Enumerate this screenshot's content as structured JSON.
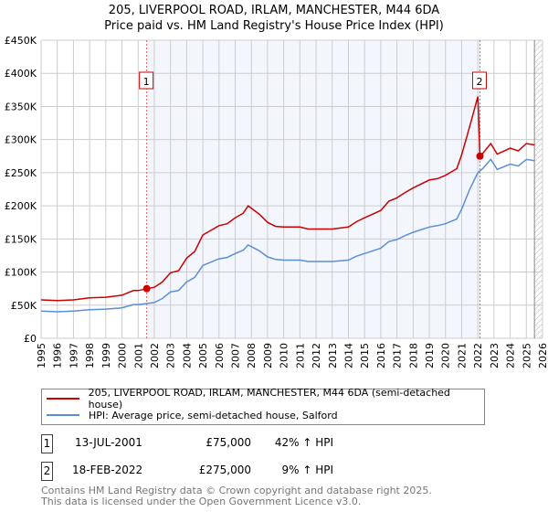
{
  "chart_data": {
    "type": "line",
    "title": "205, LIVERPOOL ROAD, IRLAM, MANCHESTER, M44 6DA",
    "subtitle": "Price paid vs. HM Land Registry's House Price Index (HPI)",
    "xlim": [
      1995,
      2026
    ],
    "ylim": [
      0,
      450000
    ],
    "x_ticks": [
      "1995",
      "1996",
      "1997",
      "1998",
      "1999",
      "2000",
      "2001",
      "2002",
      "2003",
      "2004",
      "2005",
      "2006",
      "2007",
      "2008",
      "2009",
      "2010",
      "2011",
      "2012",
      "2013",
      "2014",
      "2015",
      "2016",
      "2017",
      "2018",
      "2019",
      "2020",
      "2021",
      "2022",
      "2023",
      "2024",
      "2025",
      "2026"
    ],
    "y_ticks": [
      {
        "v": 0,
        "label": "£0"
      },
      {
        "v": 50000,
        "label": "£50K"
      },
      {
        "v": 100000,
        "label": "£100K"
      },
      {
        "v": 150000,
        "label": "£150K"
      },
      {
        "v": 200000,
        "label": "£200K"
      },
      {
        "v": 250000,
        "label": "£250K"
      },
      {
        "v": 300000,
        "label": "£300K"
      },
      {
        "v": 350000,
        "label": "£350K"
      },
      {
        "v": 400000,
        "label": "£400K"
      },
      {
        "v": 450000,
        "label": "£450K"
      }
    ],
    "grid": true,
    "series": [
      {
        "name": "205, LIVERPOOL ROAD, IRLAM, MANCHESTER, M44 6DA (semi-detached house)",
        "color": "#cc0000",
        "x": [
          1995,
          1996,
          1997,
          1998,
          1999,
          2000,
          2000.7,
          2001,
          2002,
          2002.5,
          2003,
          2003.5,
          2004,
          2004.5,
          2005,
          2005.5,
          2006,
          2006.5,
          2007,
          2007.5,
          2007.8,
          2008.5,
          2009,
          2009.5,
          2010,
          2011,
          2011.5,
          2012,
          2013,
          2014,
          2014.5,
          2015,
          2016,
          2016.5,
          2017,
          2017.5,
          2018,
          2019,
          2019.5,
          2020,
          2020.7,
          2021,
          2021.5,
          2022.0,
          2022.13,
          2022.3,
          2022.8,
          2023.2,
          2024,
          2024.5,
          2025,
          2025.5
        ],
        "y": [
          58000,
          57000,
          58000,
          61000,
          62000,
          65000,
          72000,
          72000,
          77000,
          85000,
          99000,
          102000,
          121000,
          131000,
          156000,
          163000,
          170000,
          173000,
          182000,
          189000,
          200000,
          187000,
          175000,
          169000,
          168000,
          168000,
          165000,
          165000,
          165000,
          168000,
          176000,
          182000,
          193000,
          207000,
          212000,
          220000,
          227000,
          239000,
          241000,
          246000,
          256000,
          277000,
          320000,
          365000,
          275000,
          279000,
          294000,
          278000,
          287000,
          283000,
          294000,
          292000
        ]
      },
      {
        "name": "HPI: Average price, semi-detached house, Salford",
        "color": "#5b8fd4",
        "x": [
          1995,
          1996,
          1997,
          1998,
          1999,
          2000,
          2000.7,
          2001,
          2002,
          2002.5,
          2003,
          2003.5,
          2004,
          2004.5,
          2005,
          2005.5,
          2006,
          2006.5,
          2007,
          2007.5,
          2007.8,
          2008.5,
          2009,
          2009.5,
          2010,
          2011,
          2011.5,
          2012,
          2013,
          2014,
          2014.5,
          2015,
          2016,
          2016.5,
          2017,
          2017.5,
          2018,
          2019,
          2019.5,
          2020,
          2020.7,
          2021,
          2021.5,
          2022,
          2022.3,
          2022.8,
          2023.2,
          2024,
          2024.5,
          2025,
          2025.5
        ],
        "y": [
          41000,
          40000,
          41000,
          43000,
          44000,
          46000,
          51000,
          51000,
          54000,
          60000,
          70000,
          72000,
          85000,
          92000,
          110000,
          115000,
          120000,
          122000,
          128000,
          133000,
          141000,
          132000,
          123000,
          119000,
          118000,
          118000,
          116000,
          116000,
          116000,
          118000,
          124000,
          128000,
          136000,
          146000,
          149000,
          155000,
          160000,
          168000,
          170000,
          173000,
          180000,
          195000,
          225000,
          250000,
          256000,
          270000,
          255000,
          263000,
          260000,
          270000,
          268000
        ]
      }
    ],
    "sales": [
      {
        "id": "1",
        "x": 2001.53,
        "y": 75000
      },
      {
        "id": "2",
        "x": 2022.13,
        "y": 275000
      }
    ],
    "shaded_range": [
      2001.53,
      2022.13
    ],
    "hatched_from": 2025.5,
    "legend_position": "bottom"
  },
  "legend": [
    "205, LIVERPOOL ROAD, IRLAM, MANCHESTER, M44 6DA (semi-detached house)",
    "HPI: Average price, semi-detached house, Salford"
  ],
  "transactions": [
    {
      "id": "1",
      "date": "13-JUL-2001",
      "price": "£75,000",
      "delta": "42% ↑ HPI"
    },
    {
      "id": "2",
      "date": "18-FEB-2022",
      "price": "£275,000",
      "delta": "9% ↑ HPI"
    }
  ],
  "footer": [
    "Contains HM Land Registry data © Crown copyright and database right 2025.",
    "This data is licensed under the Open Government Licence v3.0."
  ]
}
